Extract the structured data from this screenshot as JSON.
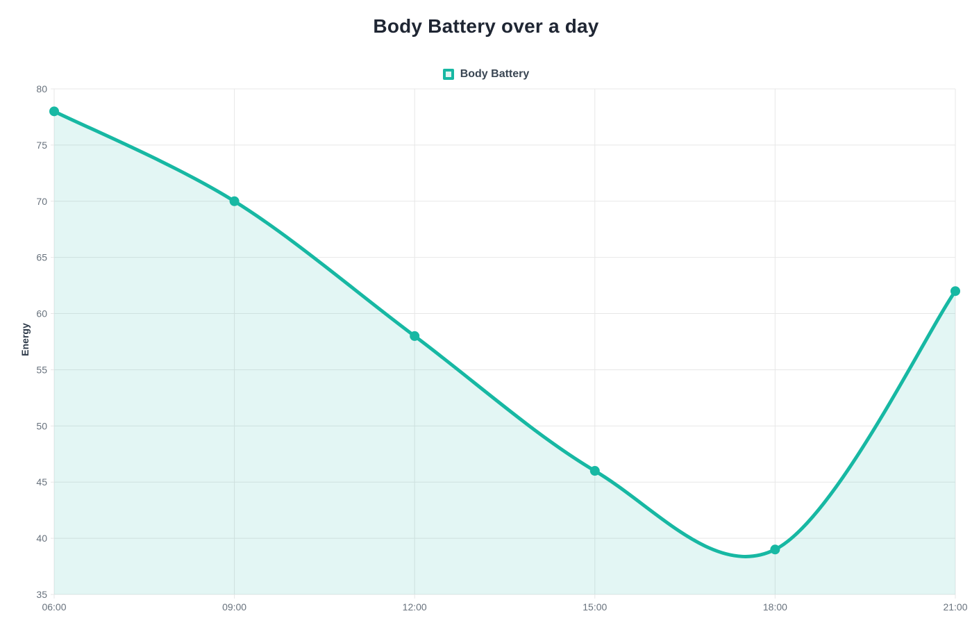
{
  "page": {
    "background": "#ffffff"
  },
  "chart_data": {
    "type": "area",
    "title": "Body Battery over a day",
    "ylabel": "Energy",
    "xlabel": "",
    "x": [
      "06:00",
      "09:00",
      "12:00",
      "15:00",
      "18:00",
      "21:00"
    ],
    "series": [
      {
        "name": "Body Battery",
        "values": [
          78,
          70,
          58,
          46,
          39,
          62
        ]
      }
    ],
    "ylim": [
      35,
      80
    ],
    "yticks": [
      35,
      40,
      45,
      50,
      55,
      60,
      65,
      70,
      75,
      80
    ],
    "grid": true,
    "legend_position": "top",
    "smooth": true,
    "marker_shape": "circle",
    "colors": {
      "accent": "#17b8a3",
      "fill_opacity": 0.12,
      "grid": "#e7e7e7",
      "title_text": "#1f2633",
      "legend_text": "#3a4653",
      "axis_text": "#68727d",
      "axis_title_text": "#2e3a49"
    }
  }
}
